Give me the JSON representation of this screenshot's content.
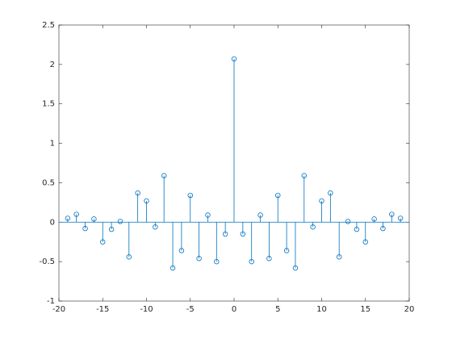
{
  "chart_data": {
    "type": "stem",
    "color": "#0072bd",
    "x": [
      -19,
      -18,
      -17,
      -16,
      -15,
      -14,
      -13,
      -12,
      -11,
      -10,
      -9,
      -8,
      -7,
      -6,
      -5,
      -4,
      -3,
      -2,
      -1,
      0,
      1,
      2,
      3,
      4,
      5,
      6,
      7,
      8,
      9,
      10,
      11,
      12,
      13,
      14,
      15,
      16,
      17,
      18,
      19
    ],
    "values": [
      0.05,
      0.1,
      -0.08,
      0.04,
      -0.25,
      -0.09,
      0.01,
      -0.44,
      0.37,
      0.27,
      -0.06,
      0.59,
      -0.58,
      -0.36,
      0.34,
      -0.46,
      0.09,
      -0.5,
      -0.15,
      2.07,
      -0.15,
      -0.5,
      0.09,
      -0.46,
      0.34,
      -0.36,
      -0.58,
      0.59,
      -0.06,
      0.27,
      0.37,
      -0.44,
      0.01,
      -0.09,
      -0.25,
      0.04,
      -0.08,
      0.1,
      0.05
    ],
    "xlim": [
      -20,
      20
    ],
    "xticks": [
      -20,
      -15,
      -10,
      -5,
      0,
      5,
      10,
      15,
      20
    ],
    "ylim": [
      -1,
      2.5
    ],
    "yticks": [
      -1,
      -0.5,
      0,
      0.5,
      1,
      1.5,
      2,
      2.5
    ]
  }
}
